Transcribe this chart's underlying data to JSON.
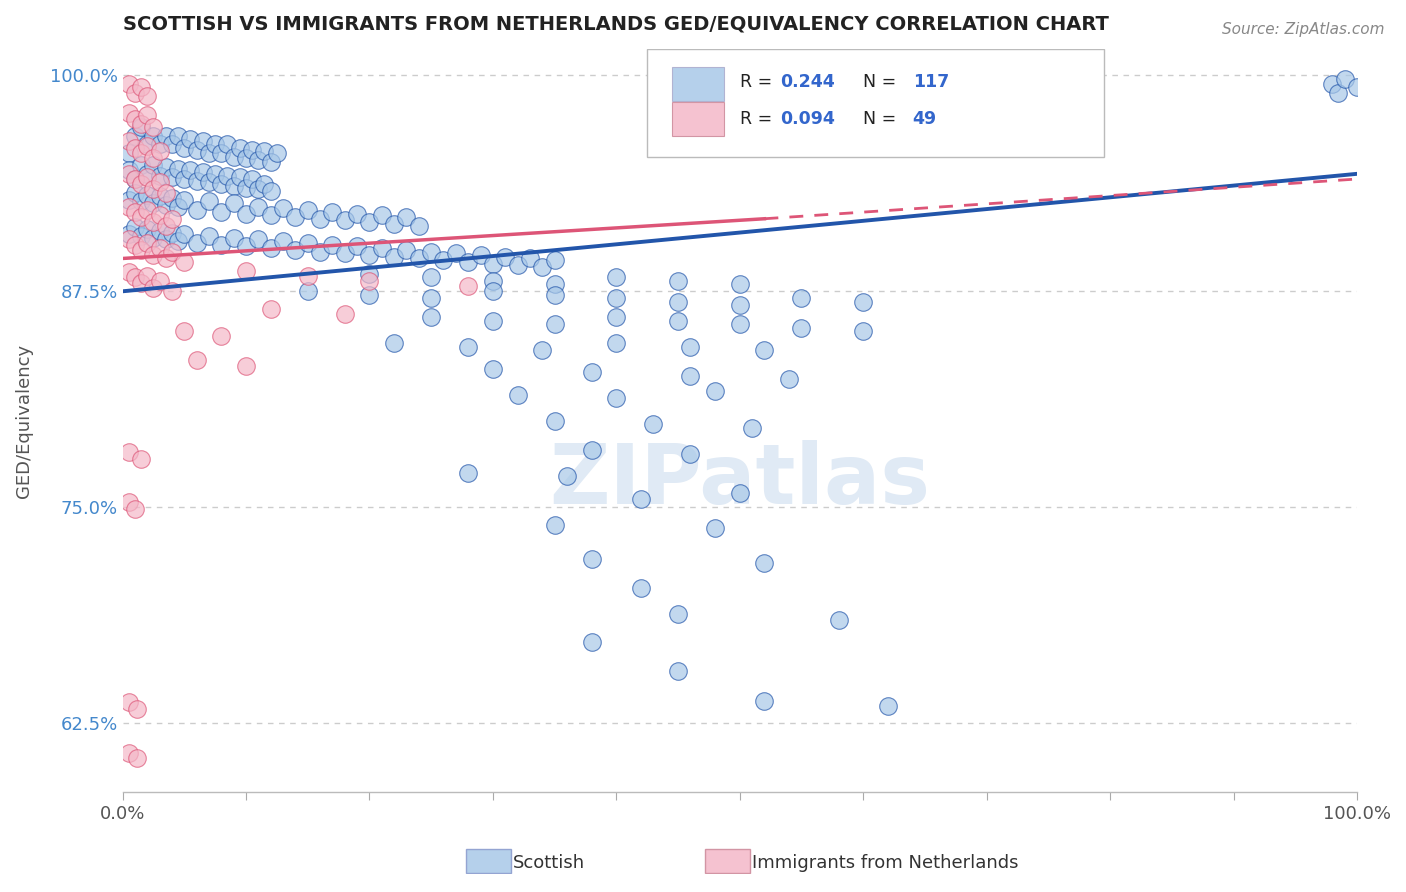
{
  "title": "SCOTTISH VS IMMIGRANTS FROM NETHERLANDS GED/EQUIVALENCY CORRELATION CHART",
  "source": "Source: ZipAtlas.com",
  "ylabel": "GED/Equivalency",
  "xlim": [
    0.0,
    1.0
  ],
  "ylim": [
    0.585,
    1.015
  ],
  "yticks": [
    0.625,
    0.75,
    0.875,
    1.0
  ],
  "ytick_labels": [
    "62.5%",
    "75.0%",
    "87.5%",
    "100.0%"
  ],
  "xticks": [
    0.0,
    0.1,
    0.2,
    0.3,
    0.4,
    0.5,
    0.6,
    0.7,
    0.8,
    0.9,
    1.0
  ],
  "xtick_labels": [
    "0.0%",
    "",
    "",
    "",
    "",
    "",
    "",
    "",
    "",
    "",
    "100.0%"
  ],
  "watermark": "ZIPatlas",
  "blue_color": "#a8c8e8",
  "pink_color": "#f4b8c8",
  "blue_line_color": "#2255aa",
  "pink_line_color": "#dd5577",
  "scatter_blue": [
    [
      0.005,
      0.955
    ],
    [
      0.01,
      0.965
    ],
    [
      0.015,
      0.97
    ],
    [
      0.02,
      0.96
    ],
    [
      0.025,
      0.965
    ],
    [
      0.03,
      0.96
    ],
    [
      0.035,
      0.965
    ],
    [
      0.04,
      0.96
    ],
    [
      0.045,
      0.965
    ],
    [
      0.05,
      0.958
    ],
    [
      0.055,
      0.963
    ],
    [
      0.06,
      0.957
    ],
    [
      0.065,
      0.962
    ],
    [
      0.07,
      0.955
    ],
    [
      0.075,
      0.96
    ],
    [
      0.08,
      0.955
    ],
    [
      0.085,
      0.96
    ],
    [
      0.09,
      0.953
    ],
    [
      0.095,
      0.958
    ],
    [
      0.1,
      0.952
    ],
    [
      0.105,
      0.957
    ],
    [
      0.11,
      0.951
    ],
    [
      0.115,
      0.956
    ],
    [
      0.12,
      0.95
    ],
    [
      0.125,
      0.955
    ],
    [
      0.005,
      0.945
    ],
    [
      0.01,
      0.94
    ],
    [
      0.015,
      0.948
    ],
    [
      0.02,
      0.943
    ],
    [
      0.025,
      0.948
    ],
    [
      0.03,
      0.942
    ],
    [
      0.035,
      0.947
    ],
    [
      0.04,
      0.941
    ],
    [
      0.045,
      0.946
    ],
    [
      0.05,
      0.94
    ],
    [
      0.055,
      0.945
    ],
    [
      0.06,
      0.939
    ],
    [
      0.065,
      0.944
    ],
    [
      0.07,
      0.938
    ],
    [
      0.075,
      0.943
    ],
    [
      0.08,
      0.937
    ],
    [
      0.085,
      0.942
    ],
    [
      0.09,
      0.936
    ],
    [
      0.095,
      0.941
    ],
    [
      0.1,
      0.935
    ],
    [
      0.105,
      0.94
    ],
    [
      0.11,
      0.934
    ],
    [
      0.115,
      0.937
    ],
    [
      0.12,
      0.933
    ],
    [
      0.005,
      0.928
    ],
    [
      0.01,
      0.932
    ],
    [
      0.015,
      0.927
    ],
    [
      0.02,
      0.931
    ],
    [
      0.025,
      0.926
    ],
    [
      0.03,
      0.93
    ],
    [
      0.035,
      0.925
    ],
    [
      0.04,
      0.929
    ],
    [
      0.045,
      0.924
    ],
    [
      0.05,
      0.928
    ],
    [
      0.06,
      0.922
    ],
    [
      0.07,
      0.927
    ],
    [
      0.08,
      0.921
    ],
    [
      0.09,
      0.926
    ],
    [
      0.1,
      0.92
    ],
    [
      0.11,
      0.924
    ],
    [
      0.12,
      0.919
    ],
    [
      0.13,
      0.923
    ],
    [
      0.14,
      0.918
    ],
    [
      0.15,
      0.922
    ],
    [
      0.16,
      0.917
    ],
    [
      0.17,
      0.921
    ],
    [
      0.18,
      0.916
    ],
    [
      0.19,
      0.92
    ],
    [
      0.2,
      0.915
    ],
    [
      0.21,
      0.919
    ],
    [
      0.22,
      0.914
    ],
    [
      0.23,
      0.918
    ],
    [
      0.24,
      0.913
    ],
    [
      0.005,
      0.908
    ],
    [
      0.01,
      0.912
    ],
    [
      0.015,
      0.907
    ],
    [
      0.02,
      0.911
    ],
    [
      0.025,
      0.906
    ],
    [
      0.03,
      0.91
    ],
    [
      0.035,
      0.905
    ],
    [
      0.04,
      0.909
    ],
    [
      0.045,
      0.904
    ],
    [
      0.05,
      0.908
    ],
    [
      0.06,
      0.903
    ],
    [
      0.07,
      0.907
    ],
    [
      0.08,
      0.902
    ],
    [
      0.09,
      0.906
    ],
    [
      0.1,
      0.901
    ],
    [
      0.11,
      0.905
    ],
    [
      0.12,
      0.9
    ],
    [
      0.13,
      0.904
    ],
    [
      0.14,
      0.899
    ],
    [
      0.15,
      0.903
    ],
    [
      0.16,
      0.898
    ],
    [
      0.17,
      0.902
    ],
    [
      0.18,
      0.897
    ],
    [
      0.19,
      0.901
    ],
    [
      0.2,
      0.896
    ],
    [
      0.21,
      0.9
    ],
    [
      0.22,
      0.895
    ],
    [
      0.23,
      0.899
    ],
    [
      0.24,
      0.894
    ],
    [
      0.25,
      0.898
    ],
    [
      0.26,
      0.893
    ],
    [
      0.27,
      0.897
    ],
    [
      0.28,
      0.892
    ],
    [
      0.29,
      0.896
    ],
    [
      0.3,
      0.891
    ],
    [
      0.31,
      0.895
    ],
    [
      0.32,
      0.89
    ],
    [
      0.33,
      0.894
    ],
    [
      0.34,
      0.889
    ],
    [
      0.35,
      0.893
    ],
    [
      0.2,
      0.885
    ],
    [
      0.25,
      0.883
    ],
    [
      0.3,
      0.881
    ],
    [
      0.35,
      0.879
    ],
    [
      0.4,
      0.883
    ],
    [
      0.45,
      0.881
    ],
    [
      0.5,
      0.879
    ],
    [
      0.15,
      0.875
    ],
    [
      0.2,
      0.873
    ],
    [
      0.25,
      0.871
    ],
    [
      0.3,
      0.875
    ],
    [
      0.35,
      0.873
    ],
    [
      0.4,
      0.871
    ],
    [
      0.45,
      0.869
    ],
    [
      0.5,
      0.867
    ],
    [
      0.55,
      0.871
    ],
    [
      0.6,
      0.869
    ],
    [
      0.25,
      0.86
    ],
    [
      0.3,
      0.858
    ],
    [
      0.35,
      0.856
    ],
    [
      0.4,
      0.86
    ],
    [
      0.45,
      0.858
    ],
    [
      0.5,
      0.856
    ],
    [
      0.55,
      0.854
    ],
    [
      0.6,
      0.852
    ],
    [
      0.22,
      0.845
    ],
    [
      0.28,
      0.843
    ],
    [
      0.34,
      0.841
    ],
    [
      0.4,
      0.845
    ],
    [
      0.46,
      0.843
    ],
    [
      0.52,
      0.841
    ],
    [
      0.3,
      0.83
    ],
    [
      0.38,
      0.828
    ],
    [
      0.46,
      0.826
    ],
    [
      0.54,
      0.824
    ],
    [
      0.32,
      0.815
    ],
    [
      0.4,
      0.813
    ],
    [
      0.48,
      0.817
    ],
    [
      0.35,
      0.8
    ],
    [
      0.43,
      0.798
    ],
    [
      0.51,
      0.796
    ],
    [
      0.38,
      0.783
    ],
    [
      0.46,
      0.781
    ],
    [
      0.28,
      0.77
    ],
    [
      0.36,
      0.768
    ],
    [
      0.42,
      0.755
    ],
    [
      0.5,
      0.758
    ],
    [
      0.35,
      0.74
    ],
    [
      0.48,
      0.738
    ],
    [
      0.38,
      0.72
    ],
    [
      0.52,
      0.718
    ],
    [
      0.42,
      0.703
    ],
    [
      0.45,
      0.688
    ],
    [
      0.58,
      0.685
    ],
    [
      0.38,
      0.672
    ],
    [
      0.45,
      0.655
    ],
    [
      0.52,
      0.638
    ],
    [
      0.62,
      0.635
    ],
    [
      0.98,
      0.995
    ],
    [
      0.985,
      0.99
    ],
    [
      0.99,
      0.998
    ],
    [
      1.0,
      0.993
    ]
  ],
  "scatter_pink": [
    [
      0.005,
      0.995
    ],
    [
      0.01,
      0.99
    ],
    [
      0.015,
      0.993
    ],
    [
      0.02,
      0.988
    ],
    [
      0.005,
      0.978
    ],
    [
      0.01,
      0.975
    ],
    [
      0.015,
      0.972
    ],
    [
      0.02,
      0.977
    ],
    [
      0.025,
      0.97
    ],
    [
      0.005,
      0.962
    ],
    [
      0.01,
      0.958
    ],
    [
      0.015,
      0.955
    ],
    [
      0.02,
      0.959
    ],
    [
      0.025,
      0.952
    ],
    [
      0.03,
      0.956
    ],
    [
      0.005,
      0.943
    ],
    [
      0.01,
      0.94
    ],
    [
      0.015,
      0.937
    ],
    [
      0.02,
      0.941
    ],
    [
      0.025,
      0.934
    ],
    [
      0.03,
      0.938
    ],
    [
      0.035,
      0.932
    ],
    [
      0.005,
      0.924
    ],
    [
      0.01,
      0.921
    ],
    [
      0.015,
      0.918
    ],
    [
      0.02,
      0.922
    ],
    [
      0.025,
      0.915
    ],
    [
      0.03,
      0.919
    ],
    [
      0.035,
      0.913
    ],
    [
      0.04,
      0.917
    ],
    [
      0.005,
      0.905
    ],
    [
      0.01,
      0.902
    ],
    [
      0.015,
      0.899
    ],
    [
      0.02,
      0.903
    ],
    [
      0.025,
      0.896
    ],
    [
      0.03,
      0.9
    ],
    [
      0.035,
      0.894
    ],
    [
      0.04,
      0.898
    ],
    [
      0.05,
      0.892
    ],
    [
      0.005,
      0.886
    ],
    [
      0.01,
      0.883
    ],
    [
      0.015,
      0.88
    ],
    [
      0.02,
      0.884
    ],
    [
      0.025,
      0.877
    ],
    [
      0.03,
      0.881
    ],
    [
      0.04,
      0.875
    ],
    [
      0.1,
      0.887
    ],
    [
      0.15,
      0.884
    ],
    [
      0.2,
      0.881
    ],
    [
      0.28,
      0.878
    ],
    [
      0.12,
      0.865
    ],
    [
      0.18,
      0.862
    ],
    [
      0.05,
      0.852
    ],
    [
      0.08,
      0.849
    ],
    [
      0.06,
      0.835
    ],
    [
      0.1,
      0.832
    ],
    [
      0.005,
      0.782
    ],
    [
      0.015,
      0.778
    ],
    [
      0.005,
      0.753
    ],
    [
      0.01,
      0.749
    ],
    [
      0.005,
      0.637
    ],
    [
      0.012,
      0.633
    ],
    [
      0.005,
      0.608
    ],
    [
      0.012,
      0.605
    ]
  ],
  "blue_trendline": [
    [
      0.0,
      0.875
    ],
    [
      1.0,
      0.943
    ]
  ],
  "pink_trendline_solid": [
    [
      0.0,
      0.894
    ],
    [
      0.52,
      0.917
    ]
  ],
  "pink_trendline_dashed": [
    [
      0.52,
      0.917
    ],
    [
      1.0,
      0.94
    ]
  ],
  "background_color": "#ffffff",
  "grid_color": "#cccccc",
  "title_color": "#222222",
  "axis_color": "#555555",
  "ytick_color": "#4488cc",
  "watermark_color": "#e0eaf5"
}
